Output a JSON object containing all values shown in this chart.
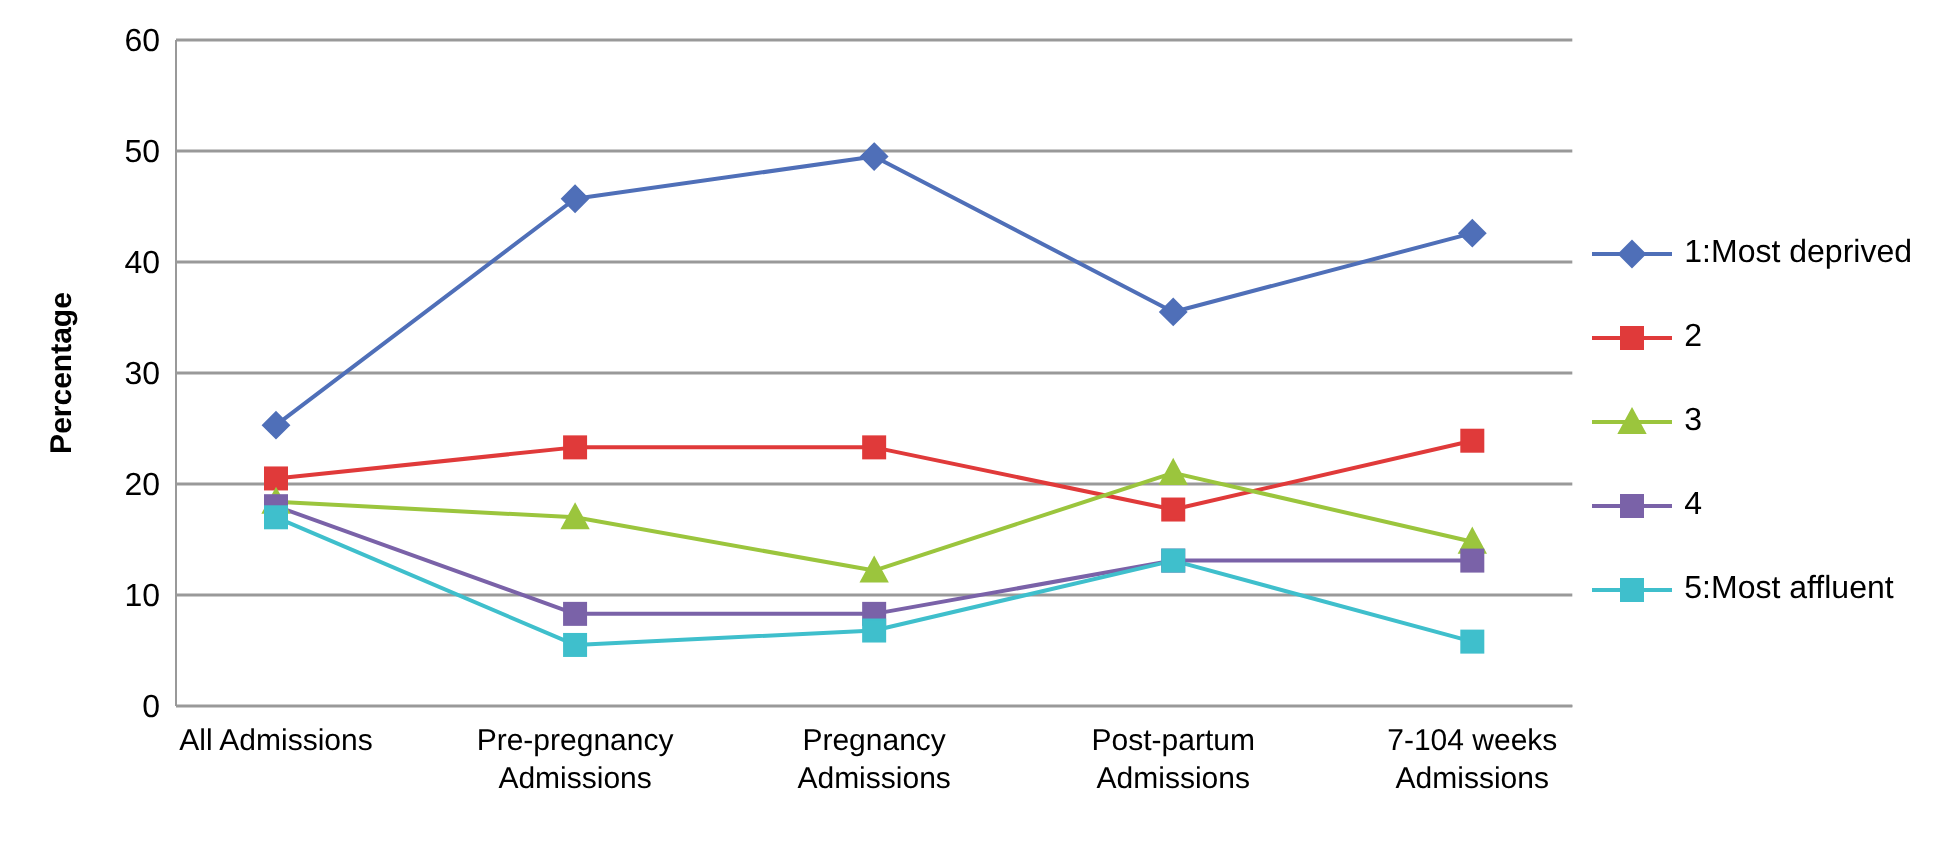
{
  "chart_data": {
    "type": "line",
    "ylabel": "Percentage",
    "categories": [
      "All Admissions",
      "Pre-pregnancy Admissions",
      "Pregnancy Admissions",
      "Post-partum Admissions",
      "7-104 weeks Admissions"
    ],
    "series": [
      {
        "name": "1:Most deprived",
        "color": "#4f6fb8",
        "marker": "diamond",
        "values": [
          25.3,
          45.7,
          49.5,
          35.5,
          42.6
        ]
      },
      {
        "name": "2",
        "color": "#e03a3a",
        "marker": "square",
        "values": [
          20.5,
          23.3,
          23.3,
          17.7,
          23.9
        ]
      },
      {
        "name": "3",
        "color": "#9bc53d",
        "marker": "triangle",
        "values": [
          18.4,
          17.0,
          12.2,
          21.0,
          14.8
        ]
      },
      {
        "name": "4",
        "color": "#7a62a8",
        "marker": "square",
        "values": [
          18.0,
          8.3,
          8.3,
          13.1,
          13.1
        ]
      },
      {
        "name": "5:Most affluent",
        "color": "#3fbfcc",
        "marker": "square",
        "values": [
          17.0,
          5.5,
          6.8,
          13.1,
          5.8
        ]
      }
    ],
    "ylim": [
      0,
      60
    ],
    "yticks": [
      0,
      10,
      20,
      30,
      40,
      50,
      60
    ],
    "grid": "y",
    "legend": "right",
    "line_style": "solid"
  }
}
